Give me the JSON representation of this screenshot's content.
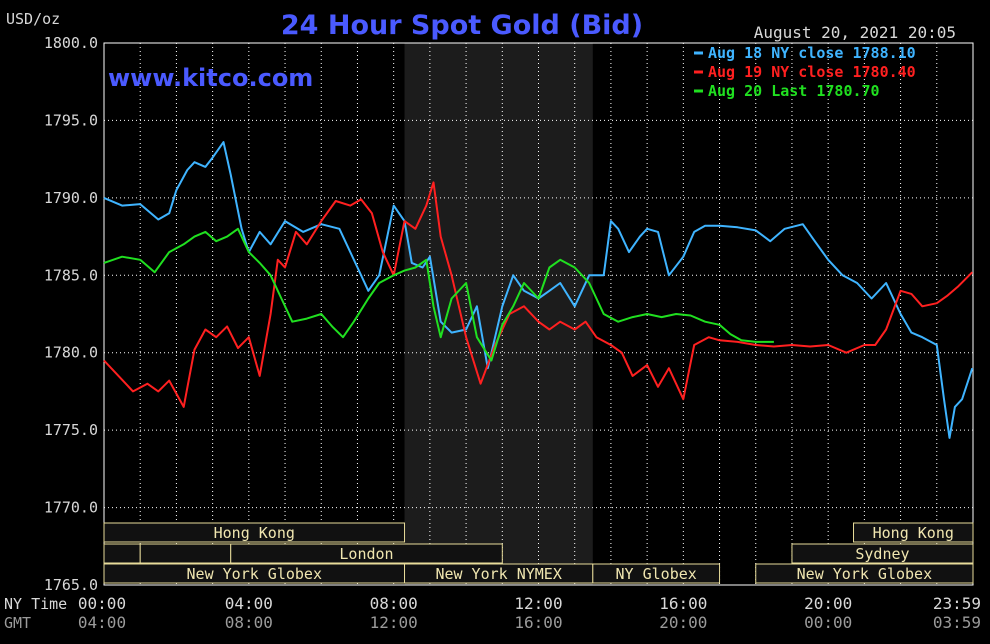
{
  "chart_data": {
    "type": "line",
    "title": "24 Hour Spot Gold (Bid)",
    "ylabel": "USD/oz",
    "watermark": "www.kitco.com",
    "timestamp": "August 20, 2021 20:05",
    "ylim": [
      1765,
      1800
    ],
    "yticks": [
      "1800.0",
      "1795.0",
      "1790.0",
      "1785.0",
      "1780.0",
      "1775.0",
      "1770.0",
      "1765.0"
    ],
    "xlim": [
      0,
      24
    ],
    "x_axis_ny_label": "NY Time",
    "x_axis_gmt_label": "GMT",
    "ny_time_ticks": [
      "00:00",
      "04:00",
      "08:00",
      "12:00",
      "16:00",
      "20:00",
      "23:59"
    ],
    "gmt_ticks": [
      "04:00",
      "08:00",
      "12:00",
      "16:00",
      "20:00",
      "00:00",
      "03:59"
    ],
    "highlight_span_hours": [
      8.3,
      13.5
    ],
    "series": [
      {
        "name": "Aug 18 NY close 1788.10",
        "color": "#3fb4ff",
        "x": [
          0,
          0.5,
          1,
          1.5,
          1.8,
          2,
          2.3,
          2.5,
          2.8,
          3,
          3.3,
          3.5,
          3.8,
          4,
          4.3,
          4.6,
          5,
          5.5,
          6,
          6.5,
          7,
          7.3,
          7.6,
          8,
          8.3,
          8.5,
          8.8,
          9,
          9.3,
          9.6,
          10,
          10.3,
          10.6,
          11,
          11.3,
          11.6,
          12,
          12.3,
          12.6,
          13,
          13.4,
          13.8,
          14,
          14.2,
          14.5,
          14.8,
          15,
          15.3,
          15.6,
          16,
          16.3,
          16.6,
          17,
          17.5,
          18,
          18.4,
          18.8,
          19.3,
          19.6,
          20,
          20.4,
          20.8,
          21.2,
          21.6,
          22,
          22.3,
          22.6,
          23,
          23.2,
          23.35,
          23.5,
          23.7,
          23.98
        ],
        "y": [
          1790.0,
          1789.5,
          1789.6,
          1788.6,
          1789.0,
          1790.5,
          1791.8,
          1792.3,
          1792.0,
          1792.6,
          1793.6,
          1791.5,
          1788.0,
          1786.5,
          1787.8,
          1787.0,
          1788.5,
          1787.8,
          1788.3,
          1788.0,
          1785.5,
          1784.0,
          1785.0,
          1789.5,
          1788.5,
          1785.8,
          1785.5,
          1786.2,
          1782.0,
          1781.3,
          1781.5,
          1783.0,
          1779.0,
          1783.0,
          1785.0,
          1784.0,
          1783.5,
          1784.0,
          1784.5,
          1783.0,
          1785.0,
          1785.0,
          1788.5,
          1788.0,
          1786.5,
          1787.5,
          1788.0,
          1787.8,
          1785.0,
          1786.2,
          1787.8,
          1788.2,
          1788.2,
          1788.1,
          1787.9,
          1787.2,
          1788.0,
          1788.3,
          1787.3,
          1786.0,
          1785.0,
          1784.5,
          1783.5,
          1784.5,
          1782.5,
          1781.3,
          1781.0,
          1780.5,
          1777.0,
          1774.5,
          1776.5,
          1777.0,
          1779.0
        ]
      },
      {
        "name": "Aug 19 NY close 1780.40",
        "color": "#ff2020",
        "x": [
          0,
          0.4,
          0.8,
          1.2,
          1.5,
          1.8,
          2.2,
          2.5,
          2.8,
          3.1,
          3.4,
          3.7,
          4,
          4.3,
          4.6,
          4.8,
          5,
          5.3,
          5.6,
          6,
          6.4,
          6.8,
          7.1,
          7.4,
          7.7,
          8,
          8.3,
          8.6,
          8.9,
          9.1,
          9.3,
          9.6,
          10,
          10.4,
          10.8,
          11.2,
          11.6,
          12,
          12.3,
          12.6,
          13,
          13.3,
          13.6,
          14,
          14.3,
          14.6,
          15,
          15.3,
          15.6,
          16,
          16.3,
          16.7,
          17,
          17.5,
          18,
          18.5,
          19,
          19.5,
          20,
          20.5,
          21,
          21.3,
          21.6,
          22,
          22.3,
          22.6,
          23,
          23.3,
          23.6,
          23.98
        ],
        "y": [
          1779.5,
          1778.5,
          1777.5,
          1778.0,
          1777.5,
          1778.2,
          1776.5,
          1780.2,
          1781.5,
          1781.0,
          1781.7,
          1780.3,
          1781.0,
          1778.5,
          1782.5,
          1786.0,
          1785.5,
          1787.8,
          1787.0,
          1788.5,
          1789.8,
          1789.5,
          1789.9,
          1789.0,
          1786.5,
          1785.0,
          1788.5,
          1788.0,
          1789.5,
          1791.0,
          1787.5,
          1785.0,
          1781.0,
          1778.0,
          1780.5,
          1782.5,
          1783.0,
          1782.0,
          1781.5,
          1782.0,
          1781.5,
          1782.0,
          1781.0,
          1780.5,
          1780.0,
          1778.5,
          1779.2,
          1777.8,
          1779.0,
          1777.0,
          1780.5,
          1781.0,
          1780.8,
          1780.7,
          1780.5,
          1780.4,
          1780.5,
          1780.4,
          1780.5,
          1780.0,
          1780.5,
          1780.5,
          1781.5,
          1784.0,
          1783.8,
          1783.0,
          1783.2,
          1783.7,
          1784.3,
          1785.2
        ]
      },
      {
        "name": "Aug 20 Last 1780.70",
        "color": "#20e020",
        "x": [
          0,
          0.5,
          1,
          1.4,
          1.8,
          2.2,
          2.5,
          2.8,
          3.1,
          3.4,
          3.7,
          4,
          4.3,
          4.6,
          4.9,
          5.2,
          5.6,
          6,
          6.3,
          6.6,
          6.9,
          7.3,
          7.6,
          8,
          8.3,
          8.6,
          8.9,
          9.1,
          9.3,
          9.6,
          10,
          10.3,
          10.7,
          11,
          11.3,
          11.6,
          12,
          12.3,
          12.6,
          13,
          13.4,
          13.8,
          14.2,
          14.6,
          15,
          15.4,
          15.8,
          16.2,
          16.6,
          17,
          17.3,
          17.6,
          18,
          18.5
        ],
        "y": [
          1785.8,
          1786.2,
          1786.0,
          1785.2,
          1786.5,
          1787.0,
          1787.5,
          1787.8,
          1787.2,
          1787.5,
          1788.0,
          1786.5,
          1785.8,
          1785.0,
          1783.5,
          1782.0,
          1782.2,
          1782.5,
          1781.7,
          1781.0,
          1782.0,
          1783.5,
          1784.5,
          1785.0,
          1785.3,
          1785.5,
          1786.0,
          1783.0,
          1781.0,
          1783.5,
          1784.5,
          1781.0,
          1779.5,
          1781.8,
          1783.0,
          1784.5,
          1783.5,
          1785.5,
          1786.0,
          1785.5,
          1784.5,
          1782.5,
          1782.0,
          1782.3,
          1782.5,
          1782.3,
          1782.5,
          1782.4,
          1782.0,
          1781.8,
          1781.2,
          1780.8,
          1780.7,
          1780.7
        ]
      }
    ],
    "sessions": [
      {
        "label": "Hong Kong",
        "start": 0,
        "end": 8.3,
        "row": 0
      },
      {
        "label": "",
        "start": 0,
        "end": 1.0,
        "row": 1
      },
      {
        "label": "",
        "start": 1.0,
        "end": 3.5,
        "row": 1
      },
      {
        "label": "London",
        "start": 3.5,
        "end": 11.0,
        "row": 1
      },
      {
        "label": "New York Globex",
        "start": 0,
        "end": 8.3,
        "row": 2
      },
      {
        "label": "New York NYMEX",
        "start": 8.3,
        "end": 13.5,
        "row": 2
      },
      {
        "label": "NY Globex",
        "start": 13.5,
        "end": 17.0,
        "row": 2
      },
      {
        "label": "Hong Kong",
        "start": 20.7,
        "end": 24,
        "row": 0
      },
      {
        "label": "Sydney",
        "start": 19.0,
        "end": 24,
        "row": 1
      },
      {
        "label": "New York Globex",
        "start": 18.0,
        "end": 24,
        "row": 2
      }
    ],
    "colors": {
      "background": "#000000",
      "grid": "#ffffff",
      "highlight": "#1c1c1c",
      "title": "#4a5aff",
      "text": "#d8d8d8",
      "session_fill": "#111111",
      "session_border": "#e8dc9a",
      "session_text": "#f0e6b0"
    }
  }
}
